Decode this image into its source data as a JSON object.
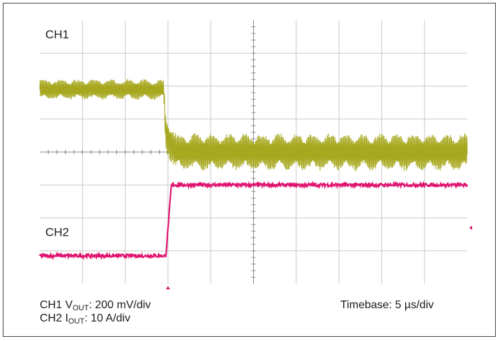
{
  "chart_data": {
    "type": "line",
    "title": "",
    "grid": true,
    "x_divisions": 10,
    "y_divisions": 8,
    "channel_labels": [
      "CH1",
      "CH2"
    ],
    "series": [
      {
        "name": "CH1",
        "color": "#a8a820",
        "x_div": [
          0,
          2.9,
          2.95,
          3.2,
          10
        ],
        "y_div": [
          5.9,
          5.9,
          4.5,
          4.0,
          4.0
        ],
        "ripple_div": [
          0.55,
          0.55,
          1.0,
          1.0,
          1.0
        ]
      },
      {
        "name": "CH2",
        "color": "#e0146e",
        "x_div": [
          0,
          2.95,
          3.08,
          10
        ],
        "y_div": [
          0.85,
          0.85,
          3.0,
          3.0
        ],
        "ripple_div": [
          0.05,
          0.05,
          0.05,
          0.05
        ]
      }
    ],
    "trigger_markers": [
      "bottom",
      "right"
    ]
  },
  "caption": {
    "line1_prefix": "CH1 V",
    "line1_sub": "OUT",
    "line1_suffix": ": 200 mV/div",
    "line2_prefix": "CH2 I",
    "line2_sub": "OUT",
    "line2_suffix": ": 10 A/div",
    "timebase": "Timebase: 5 µs/div"
  },
  "colors": {
    "grid": "#c8c8c8",
    "center_axis": "#8a8a8a",
    "ch1": "#a8a820",
    "ch2": "#e0146e"
  }
}
